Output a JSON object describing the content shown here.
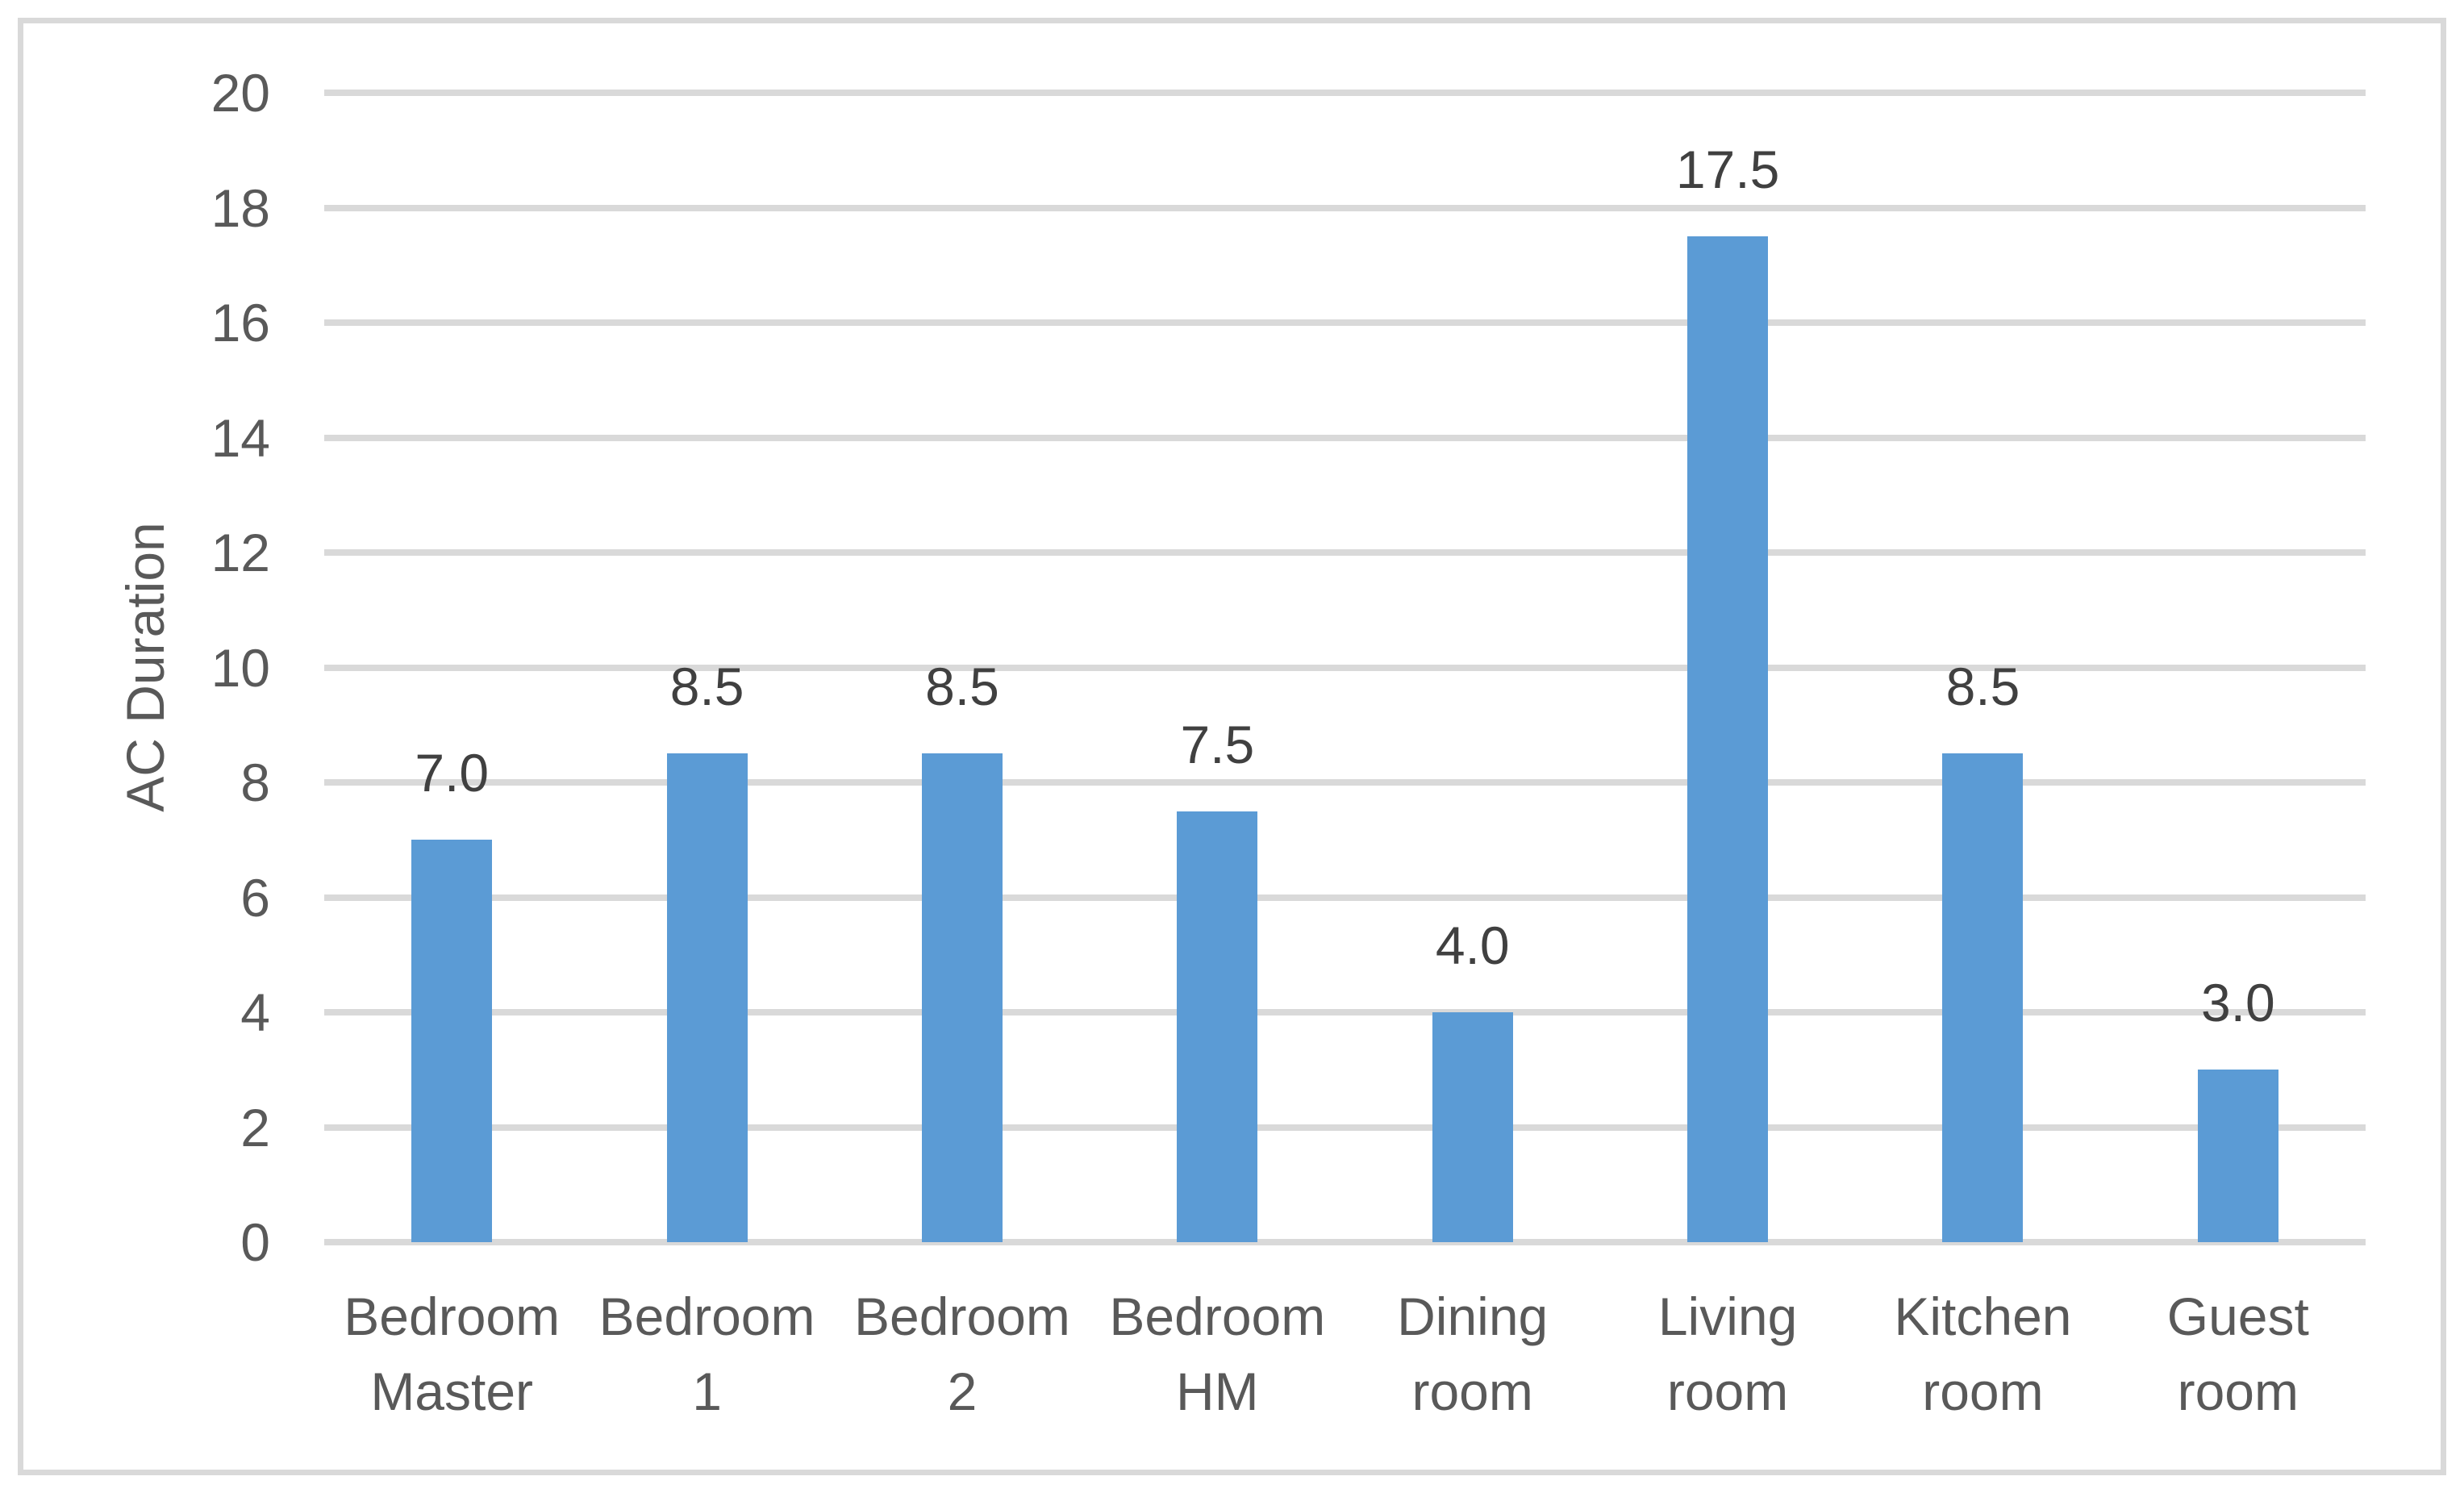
{
  "chart_data": {
    "type": "bar",
    "title": "",
    "xlabel": "",
    "ylabel": "AC Duration",
    "categories": [
      [
        "Bedroom",
        "Master"
      ],
      [
        "Bedroom",
        "1"
      ],
      [
        "Bedroom",
        "2"
      ],
      [
        "Bedroom",
        "HM"
      ],
      [
        "Dining",
        "room"
      ],
      [
        "Living",
        "room"
      ],
      [
        "Kitchen",
        "room"
      ],
      [
        "Guest",
        "room"
      ]
    ],
    "values": [
      7.0,
      8.5,
      8.5,
      7.5,
      4.0,
      17.5,
      8.5,
      3.0
    ],
    "data_labels": [
      "7.0",
      "8.5",
      "8.5",
      "7.5",
      "4.0",
      "17.5",
      "8.5",
      "3.0"
    ],
    "ylim": [
      0,
      20
    ],
    "yticks": [
      0,
      2,
      4,
      6,
      8,
      10,
      12,
      14,
      16,
      18,
      20
    ],
    "grid": "horizontal",
    "legend": "none",
    "colors": {
      "bar": "#5B9BD5",
      "gridline": "#D9D9D9",
      "axis_text": "#595959",
      "data_label": "#404040",
      "border": "#D9D9D9",
      "background": "#FFFFFF"
    }
  }
}
